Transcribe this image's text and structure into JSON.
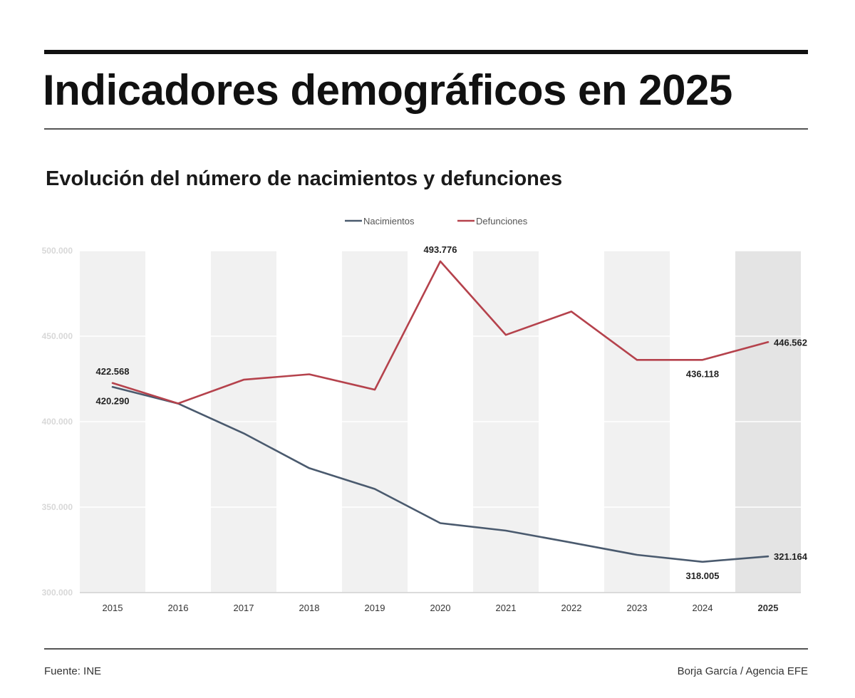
{
  "header": {
    "title": "Indicadores demográficos en 2025",
    "subtitle": "Evolución del número de nacimientos y defunciones"
  },
  "footer": {
    "source": "Fuente: INE",
    "credit": "Borja García / Agencia EFE"
  },
  "colors": {
    "nacimientos": "#4a5a6e",
    "defunciones": "#b5424c",
    "band": "#f1f1f1",
    "highlight_band": "#e4e4e4"
  },
  "chart_data": {
    "type": "line",
    "title": "Evolución del número de nacimientos y defunciones",
    "xlabel": "",
    "ylabel": "",
    "x": [
      "2015",
      "2016",
      "2017",
      "2018",
      "2019",
      "2020",
      "2021",
      "2022",
      "2023",
      "2024",
      "2025"
    ],
    "highlight_category": "2025",
    "ylim": [
      300000,
      500000
    ],
    "yticks": [
      "300.000",
      "350.000",
      "400.000",
      "450.000",
      "500.000"
    ],
    "ytick_values": [
      300000,
      350000,
      400000,
      450000,
      500000
    ],
    "grid": true,
    "legend": "top-center",
    "series": [
      {
        "name": "Nacimientos",
        "color": "#4a5a6e",
        "values": [
          420290,
          410583,
          393181,
          372777,
          360617,
          340635,
          336247,
          329251,
          322075,
          318005,
          321164
        ]
      },
      {
        "name": "Defunciones",
        "color": "#b5424c",
        "values": [
          422568,
          410611,
          424523,
          427721,
          418703,
          493776,
          450744,
          464417,
          436118,
          436118,
          446562
        ]
      }
    ],
    "annotations": [
      {
        "series": 1,
        "index": 0,
        "text": "422.568",
        "position": "above"
      },
      {
        "series": 0,
        "index": 0,
        "text": "420.290",
        "position": "below"
      },
      {
        "series": 1,
        "index": 5,
        "text": "493.776",
        "position": "above"
      },
      {
        "series": 1,
        "index": 9,
        "text": "436.118",
        "position": "below"
      },
      {
        "series": 1,
        "index": 10,
        "text": "446.562",
        "position": "right"
      },
      {
        "series": 0,
        "index": 9,
        "text": "318.005",
        "position": "below"
      },
      {
        "series": 0,
        "index": 10,
        "text": "321.164",
        "position": "right"
      }
    ]
  }
}
